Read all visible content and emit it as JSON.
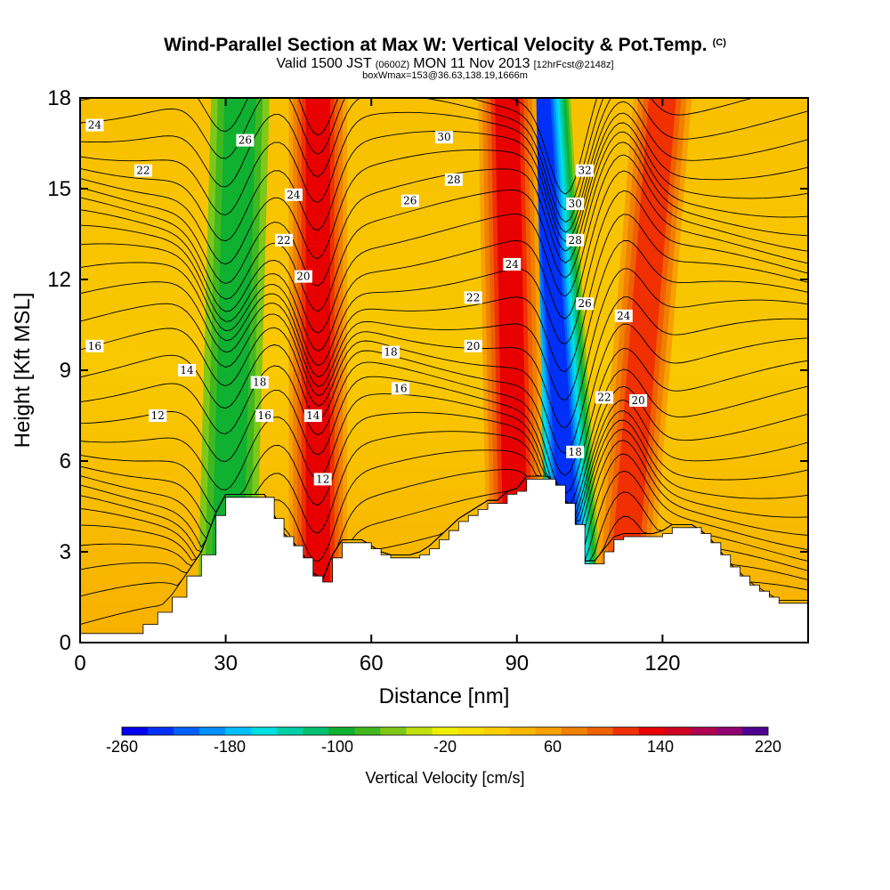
{
  "header": {
    "title": "Wind-Parallel Section at Max W: Vertical Velocity & Pot.Temp.",
    "title_suffix": "(C)",
    "valid_pre": "Valid 1500 JST",
    "valid_utc": "(0600Z)",
    "valid_post": "MON 11 Nov 2013",
    "forecast_note": "[12hrFcst@2148z]",
    "box_note": "boxWmax=153@36.63,138.19,1666m"
  },
  "colors": {
    "scale": [
      "#0000f0",
      "#0030f8",
      "#0060ff",
      "#0090ff",
      "#00c0ff",
      "#00e0e0",
      "#00d0a8",
      "#00c070",
      "#10b030",
      "#40b820",
      "#80c818",
      "#c0e010",
      "#f0f000",
      "#f8e000",
      "#fcd000",
      "#f8b800",
      "#f8a000",
      "#f08000",
      "#f06000",
      "#f03000",
      "#e80000",
      "#d00020",
      "#b00050",
      "#900070",
      "#500090"
    ],
    "terrain": "#ffffff"
  },
  "chart_data": {
    "type": "heatmap",
    "xlabel": "Distance [nm]",
    "ylabel": "Height [Kft MSL]",
    "xlim": [
      0,
      150
    ],
    "ylim": [
      0,
      18
    ],
    "xticks": [
      0,
      30,
      60,
      90,
      120
    ],
    "yticks": [
      0,
      3,
      6,
      9,
      12,
      15,
      18
    ],
    "grid": false,
    "colorbar": {
      "title": "Vertical Velocity [cm/s]",
      "min": -260,
      "max": 220,
      "step": 20,
      "tick_labels": [
        -260,
        -180,
        -100,
        -20,
        60,
        140,
        220
      ]
    },
    "vertical_velocity_bands": [
      {
        "x_bottom": 30,
        "x_top": 33,
        "peak": -100
      },
      {
        "x_bottom": 49,
        "x_top": 49,
        "peak": 140
      },
      {
        "x_bottom": 102,
        "x_top": 95,
        "peak": -240
      },
      {
        "x_bottom": 90,
        "x_top": 88,
        "peak": 140
      },
      {
        "x_bottom": 111,
        "x_top": 120,
        "peak": 120
      }
    ],
    "terrain_x": [
      0,
      12,
      13,
      16,
      19,
      22,
      25,
      28,
      30,
      32,
      34,
      36,
      38,
      40,
      42,
      44,
      46,
      48,
      50,
      52,
      54,
      56,
      58,
      60,
      62,
      64,
      66,
      68,
      70,
      72,
      74,
      76,
      78,
      80,
      82,
      84,
      86,
      88,
      90,
      92,
      94,
      96,
      98,
      100,
      102,
      104,
      106,
      108,
      110,
      112,
      114,
      116,
      118,
      120,
      122,
      124,
      126,
      128,
      130,
      132,
      134,
      136,
      138,
      140,
      142,
      144,
      146,
      148,
      150
    ],
    "terrain_kft": [
      0.3,
      0.3,
      0.6,
      1.0,
      1.5,
      2.2,
      2.9,
      4.2,
      4.8,
      4.8,
      4.8,
      4.8,
      4.8,
      4.1,
      3.5,
      3.2,
      2.8,
      2.2,
      2.0,
      2.8,
      3.3,
      3.3,
      3.3,
      3.1,
      2.9,
      2.8,
      2.8,
      2.8,
      2.9,
      3.1,
      3.4,
      3.7,
      4.0,
      4.2,
      4.4,
      4.6,
      4.6,
      4.9,
      5.0,
      5.4,
      5.4,
      5.4,
      5.2,
      4.6,
      3.9,
      2.6,
      2.6,
      3.0,
      3.4,
      3.5,
      3.5,
      3.5,
      3.5,
      3.6,
      3.8,
      3.8,
      3.8,
      3.6,
      3.3,
      2.9,
      2.5,
      2.2,
      1.9,
      1.7,
      1.5,
      1.3,
      1.3,
      1.3,
      1.3
    ],
    "theta_contours": [
      {
        "label": "12",
        "positions": [
          [
            16,
            7.5
          ],
          [
            50,
            5.4
          ]
        ]
      },
      {
        "label": "14",
        "positions": [
          [
            22,
            9.0
          ],
          [
            48,
            7.5
          ]
        ]
      },
      {
        "label": "16",
        "positions": [
          [
            3,
            9.8
          ],
          [
            38,
            7.5
          ],
          [
            66,
            8.4
          ]
        ]
      },
      {
        "label": "18",
        "positions": [
          [
            37,
            8.6
          ],
          [
            64,
            9.6
          ],
          [
            102,
            6.3
          ]
        ]
      },
      {
        "label": "20",
        "positions": [
          [
            46,
            12.1
          ],
          [
            81,
            9.8
          ],
          [
            115,
            8.0
          ]
        ]
      },
      {
        "label": "22",
        "positions": [
          [
            13,
            15.6
          ],
          [
            42,
            13.3
          ],
          [
            81,
            11.4
          ],
          [
            108,
            8.1
          ]
        ]
      },
      {
        "label": "24",
        "positions": [
          [
            3,
            17.1
          ],
          [
            44,
            14.8
          ],
          [
            89,
            12.5
          ],
          [
            112,
            10.8
          ]
        ]
      },
      {
        "label": "26",
        "positions": [
          [
            34,
            16.6
          ],
          [
            68,
            14.6
          ],
          [
            104,
            11.2
          ]
        ]
      },
      {
        "label": "28",
        "positions": [
          [
            77,
            15.3
          ],
          [
            102,
            13.3
          ]
        ]
      },
      {
        "label": "30",
        "positions": [
          [
            75,
            16.7
          ],
          [
            102,
            14.5
          ]
        ]
      },
      {
        "label": "32",
        "positions": [
          [
            104,
            15.6
          ]
        ]
      }
    ]
  }
}
